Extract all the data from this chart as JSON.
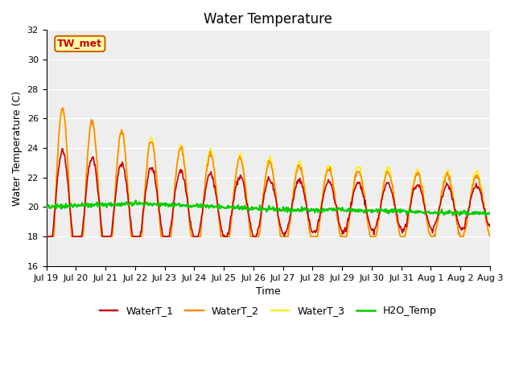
{
  "title": "Water Temperature",
  "xlabel": "Time",
  "ylabel": "Water Temperature (C)",
  "ylim": [
    16,
    32
  ],
  "yticks": [
    16,
    18,
    20,
    22,
    24,
    26,
    28,
    30,
    32
  ],
  "xtick_labels": [
    "Jul 19",
    "Jul 20",
    "Jul 21",
    "Jul 22",
    "Jul 23",
    "Jul 24",
    "Jul 25",
    "Jul 26",
    "Jul 27",
    "Jul 28",
    "Jul 29",
    "Jul 30",
    "Jul 31",
    "Aug 1",
    "Aug 2",
    "Aug 3"
  ],
  "n_days": 15,
  "colors": {
    "WaterT_1": "#cc0000",
    "WaterT_2": "#ff8800",
    "WaterT_3": "#ffee00",
    "H2O_Temp": "#00cc00"
  },
  "annotation_text": "TW_met",
  "annotation_fg": "#cc0000",
  "annotation_bg": "#ffffaa",
  "annotation_border": "#cc6600",
  "bg_color": "#eeeeee",
  "linewidth_main": 1.2,
  "linewidth_h2o": 1.5
}
